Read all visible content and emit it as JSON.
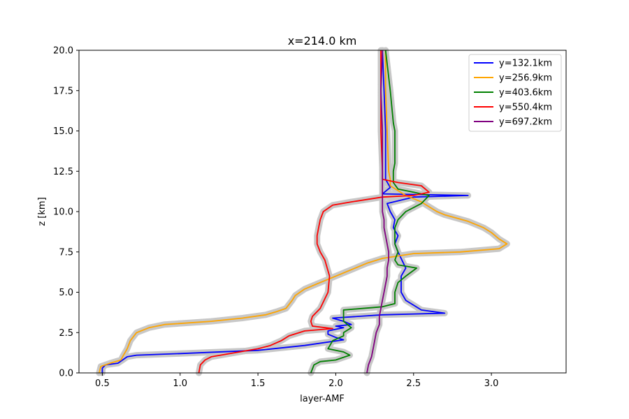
{
  "chart_data": {
    "type": "line",
    "title": "x=214.0 km",
    "xlabel": "layer-AMF",
    "ylabel": "z [km]",
    "xlim": [
      0.35,
      3.48
    ],
    "ylim": [
      0,
      20
    ],
    "xticks": [
      0.5,
      1.0,
      1.5,
      2.0,
      2.5,
      3.0
    ],
    "xtick_labels": [
      "0.5",
      "1.0",
      "1.5",
      "2.0",
      "2.5",
      "3.0"
    ],
    "yticks": [
      0,
      2.5,
      5,
      7.5,
      10,
      12.5,
      15,
      17.5,
      20
    ],
    "ytick_labels": [
      "0.0",
      "2.5",
      "5.0",
      "7.5",
      "10.0",
      "12.5",
      "15.0",
      "17.5",
      "20.0"
    ],
    "grid": false,
    "legend_position": "top-right",
    "uncertainty_color": "#c8c8c8",
    "series": [
      {
        "name": "y=132.1km",
        "color": "#0000ff",
        "points": [
          [
            0.5,
            0.0
          ],
          [
            0.5,
            0.3
          ],
          [
            0.52,
            0.5
          ],
          [
            0.6,
            0.6
          ],
          [
            0.63,
            0.8
          ],
          [
            0.66,
            1.0
          ],
          [
            0.72,
            1.1
          ],
          [
            1.0,
            1.2
          ],
          [
            1.5,
            1.4
          ],
          [
            1.8,
            1.7
          ],
          [
            2.05,
            2.05
          ],
          [
            2.0,
            2.2
          ],
          [
            1.95,
            2.4
          ],
          [
            1.95,
            2.6
          ],
          [
            2.05,
            2.8
          ],
          [
            2.0,
            2.9
          ],
          [
            2.1,
            3.0
          ],
          [
            2.05,
            3.2
          ],
          [
            1.98,
            3.4
          ],
          [
            2.3,
            3.6
          ],
          [
            2.7,
            3.7
          ],
          [
            2.55,
            3.9
          ],
          [
            2.5,
            4.2
          ],
          [
            2.45,
            4.5
          ],
          [
            2.42,
            5.0
          ],
          [
            2.42,
            6.0
          ],
          [
            2.45,
            6.5
          ],
          [
            2.4,
            7.5
          ],
          [
            2.38,
            8.0
          ],
          [
            2.4,
            8.5
          ],
          [
            2.37,
            9.0
          ],
          [
            2.38,
            9.5
          ],
          [
            2.35,
            10.0
          ],
          [
            2.33,
            10.5
          ],
          [
            2.5,
            10.9
          ],
          [
            2.85,
            11.0
          ],
          [
            2.3,
            11.1
          ],
          [
            2.35,
            11.5
          ],
          [
            2.32,
            12.0
          ],
          [
            2.32,
            12.5
          ],
          [
            2.32,
            15.0
          ],
          [
            2.31,
            17.5
          ],
          [
            2.3,
            20.0
          ]
        ]
      },
      {
        "name": "y=256.9km",
        "color": "#ffa500",
        "points": [
          [
            0.48,
            0.0
          ],
          [
            0.49,
            0.4
          ],
          [
            0.55,
            0.6
          ],
          [
            0.62,
            0.8
          ],
          [
            0.63,
            1.0
          ],
          [
            0.66,
            1.5
          ],
          [
            0.68,
            2.0
          ],
          [
            0.72,
            2.5
          ],
          [
            0.8,
            2.8
          ],
          [
            0.9,
            3.0
          ],
          [
            1.2,
            3.2
          ],
          [
            1.4,
            3.4
          ],
          [
            1.55,
            3.6
          ],
          [
            1.62,
            3.8
          ],
          [
            1.68,
            4.0
          ],
          [
            1.72,
            4.5
          ],
          [
            1.74,
            4.8
          ],
          [
            1.8,
            5.2
          ],
          [
            1.9,
            5.6
          ],
          [
            2.0,
            6.0
          ],
          [
            2.1,
            6.4
          ],
          [
            2.2,
            6.8
          ],
          [
            2.3,
            7.1
          ],
          [
            2.5,
            7.4
          ],
          [
            2.8,
            7.5
          ],
          [
            3.05,
            7.7
          ],
          [
            3.1,
            8.0
          ],
          [
            3.05,
            8.3
          ],
          [
            3.0,
            8.7
          ],
          [
            2.95,
            9.0
          ],
          [
            2.85,
            9.4
          ],
          [
            2.7,
            9.8
          ],
          [
            2.65,
            10.0
          ],
          [
            2.6,
            10.3
          ],
          [
            2.55,
            10.6
          ],
          [
            2.45,
            11.0
          ],
          [
            2.4,
            11.3
          ],
          [
            2.35,
            11.6
          ],
          [
            2.35,
            12.0
          ],
          [
            2.34,
            12.5
          ],
          [
            2.33,
            15.0
          ],
          [
            2.32,
            17.5
          ],
          [
            2.32,
            20.0
          ]
        ]
      },
      {
        "name": "y=403.6km",
        "color": "#008000",
        "points": [
          [
            1.84,
            0.0
          ],
          [
            1.86,
            0.5
          ],
          [
            1.9,
            0.7
          ],
          [
            2.0,
            0.8
          ],
          [
            2.09,
            1.1
          ],
          [
            2.05,
            1.3
          ],
          [
            1.95,
            1.5
          ],
          [
            1.98,
            2.0
          ],
          [
            2.05,
            2.3
          ],
          [
            2.05,
            2.5
          ],
          [
            2.1,
            2.8
          ],
          [
            2.05,
            3.2
          ],
          [
            2.05,
            3.5
          ],
          [
            2.05,
            3.9
          ],
          [
            2.3,
            4.1
          ],
          [
            2.38,
            4.3
          ],
          [
            2.38,
            5.0
          ],
          [
            2.4,
            5.6
          ],
          [
            2.45,
            6.0
          ],
          [
            2.52,
            6.5
          ],
          [
            2.4,
            6.7
          ],
          [
            2.38,
            7.0
          ],
          [
            2.4,
            7.5
          ],
          [
            2.38,
            8.0
          ],
          [
            2.38,
            8.5
          ],
          [
            2.38,
            9.0
          ],
          [
            2.4,
            9.5
          ],
          [
            2.45,
            10.0
          ],
          [
            2.55,
            10.5
          ],
          [
            2.6,
            11.0
          ],
          [
            2.5,
            11.2
          ],
          [
            2.4,
            11.4
          ],
          [
            2.37,
            11.8
          ],
          [
            2.37,
            12.5
          ],
          [
            2.38,
            13.0
          ],
          [
            2.38,
            15.0
          ],
          [
            2.37,
            15.5
          ],
          [
            2.35,
            17.5
          ],
          [
            2.32,
            20.0
          ]
        ]
      },
      {
        "name": "y=550.4km",
        "color": "#ff0000",
        "points": [
          [
            1.12,
            0.0
          ],
          [
            1.13,
            0.5
          ],
          [
            1.16,
            0.8
          ],
          [
            1.2,
            1.0
          ],
          [
            1.5,
            1.5
          ],
          [
            1.58,
            1.7
          ],
          [
            1.65,
            2.0
          ],
          [
            1.7,
            2.3
          ],
          [
            1.8,
            2.6
          ],
          [
            1.98,
            2.75
          ],
          [
            1.85,
            2.9
          ],
          [
            1.84,
            3.2
          ],
          [
            1.85,
            3.5
          ],
          [
            1.88,
            3.8
          ],
          [
            1.9,
            4.0
          ],
          [
            1.95,
            5.0
          ],
          [
            1.96,
            6.0
          ],
          [
            1.93,
            7.0
          ],
          [
            1.9,
            7.5
          ],
          [
            1.88,
            8.0
          ],
          [
            1.88,
            8.5
          ],
          [
            1.89,
            9.0
          ],
          [
            1.9,
            9.5
          ],
          [
            1.92,
            10.0
          ],
          [
            1.98,
            10.4
          ],
          [
            2.1,
            10.6
          ],
          [
            2.3,
            10.9
          ],
          [
            2.5,
            11.0
          ],
          [
            2.6,
            11.2
          ],
          [
            2.55,
            11.6
          ],
          [
            2.4,
            11.8
          ],
          [
            2.3,
            12.0
          ],
          [
            2.3,
            12.5
          ],
          [
            2.29,
            15.0
          ],
          [
            2.29,
            17.5
          ],
          [
            2.29,
            20.0
          ]
        ]
      },
      {
        "name": "y=697.2km",
        "color": "#800080",
        "points": [
          [
            2.2,
            0.0
          ],
          [
            2.21,
            0.5
          ],
          [
            2.23,
            1.0
          ],
          [
            2.24,
            1.5
          ],
          [
            2.25,
            2.0
          ],
          [
            2.26,
            2.5
          ],
          [
            2.28,
            3.0
          ],
          [
            2.28,
            3.5
          ],
          [
            2.29,
            4.0
          ],
          [
            2.3,
            4.5
          ],
          [
            2.31,
            5.0
          ],
          [
            2.32,
            5.5
          ],
          [
            2.33,
            6.0
          ],
          [
            2.33,
            6.5
          ],
          [
            2.34,
            7.0
          ],
          [
            2.34,
            7.5
          ],
          [
            2.33,
            8.0
          ],
          [
            2.32,
            8.5
          ],
          [
            2.31,
            9.0
          ],
          [
            2.31,
            9.5
          ],
          [
            2.3,
            10.0
          ],
          [
            2.3,
            10.5
          ],
          [
            2.3,
            11.0
          ],
          [
            2.3,
            11.5
          ],
          [
            2.3,
            12.0
          ],
          [
            2.3,
            12.5
          ],
          [
            2.3,
            15.0
          ],
          [
            2.29,
            17.5
          ],
          [
            2.3,
            20.0
          ]
        ]
      }
    ]
  }
}
